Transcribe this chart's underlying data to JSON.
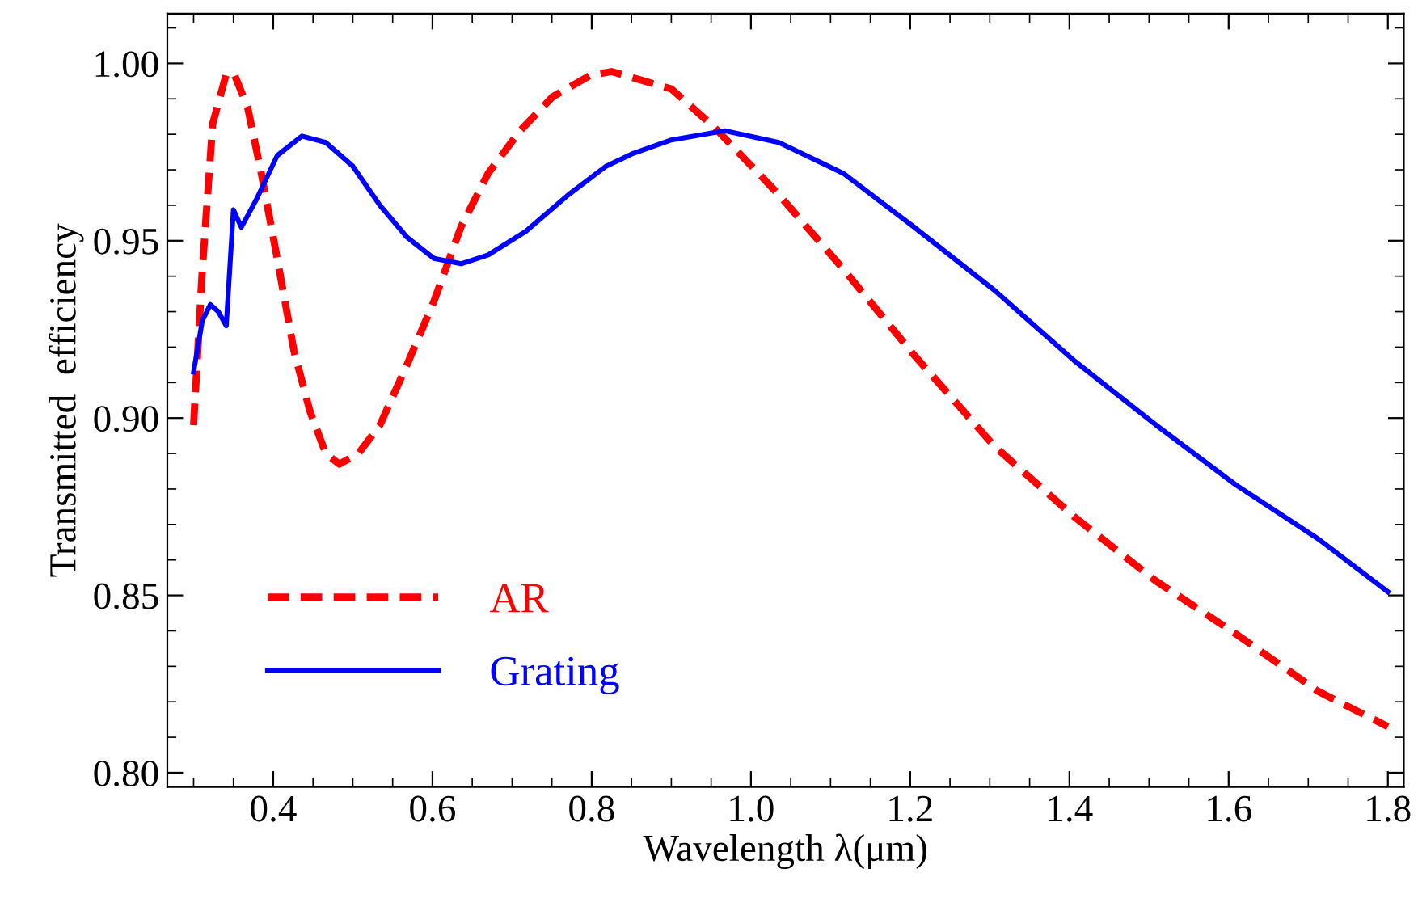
{
  "chart_data": {
    "type": "line",
    "xlabel": "Wavelength λ(μm)",
    "ylabel": "Transmitted  efficiency",
    "xlim": [
      0.267,
      1.82
    ],
    "ylim": [
      0.796,
      1.014
    ],
    "xticks": [
      0.4,
      0.6,
      0.8,
      {
        "value": 1.0,
        "label": "1.0"
      },
      1.2,
      1.4,
      1.6,
      1.8
    ],
    "yticks": [
      {
        "value": 0.8,
        "label": "0.80"
      },
      0.85,
      {
        "value": 0.9,
        "label": "0.90"
      },
      0.95,
      {
        "value": 1.0,
        "label": "1.00"
      }
    ],
    "grid": false,
    "legend": "bottom left",
    "marker": "none",
    "series": [
      {
        "name": "AR",
        "color": "#ff0000",
        "line_style": "dashed",
        "x": [
          0.3,
          0.311,
          0.324,
          0.341,
          0.351,
          0.368,
          0.385,
          0.405,
          0.426,
          0.446,
          0.466,
          0.483,
          0.507,
          0.534,
          0.568,
          0.602,
          0.636,
          0.67,
          0.71,
          0.751,
          0.798,
          0.825,
          0.9,
          0.954,
          1.035,
          1.116,
          1.204,
          1.306,
          1.407,
          1.509,
          1.61,
          1.712,
          1.8
        ],
        "values": [
          0.898,
          0.942,
          0.983,
          0.997,
          0.997,
          0.9875,
          0.969,
          0.945,
          0.919,
          0.902,
          0.89,
          0.887,
          0.89,
          0.898,
          0.915,
          0.933,
          0.954,
          0.969,
          0.981,
          0.9906,
          0.9966,
          0.9977,
          0.9928,
          0.982,
          0.963,
          0.942,
          0.918,
          0.892,
          0.872,
          0.854,
          0.839,
          0.823,
          0.813
        ]
      },
      {
        "name": "Grating",
        "color": "#0000ff",
        "line_style": "solid",
        "x": [
          0.3,
          0.311,
          0.321,
          0.331,
          0.341,
          0.35,
          0.36,
          0.379,
          0.405,
          0.436,
          0.466,
          0.5,
          0.534,
          0.568,
          0.602,
          0.636,
          0.67,
          0.717,
          0.771,
          0.818,
          0.852,
          0.9,
          0.967,
          1.035,
          1.116,
          1.204,
          1.306,
          1.407,
          1.509,
          1.61,
          1.712,
          1.8
        ],
        "values": [
          0.913,
          0.9275,
          0.932,
          0.93,
          0.926,
          0.9587,
          0.9538,
          0.9617,
          0.974,
          0.9795,
          0.9777,
          0.971,
          0.96,
          0.951,
          0.945,
          0.9435,
          0.946,
          0.9526,
          0.963,
          0.971,
          0.9746,
          0.9784,
          0.981,
          0.9777,
          0.969,
          0.954,
          0.936,
          0.916,
          0.898,
          0.881,
          0.866,
          0.851
        ]
      }
    ]
  }
}
